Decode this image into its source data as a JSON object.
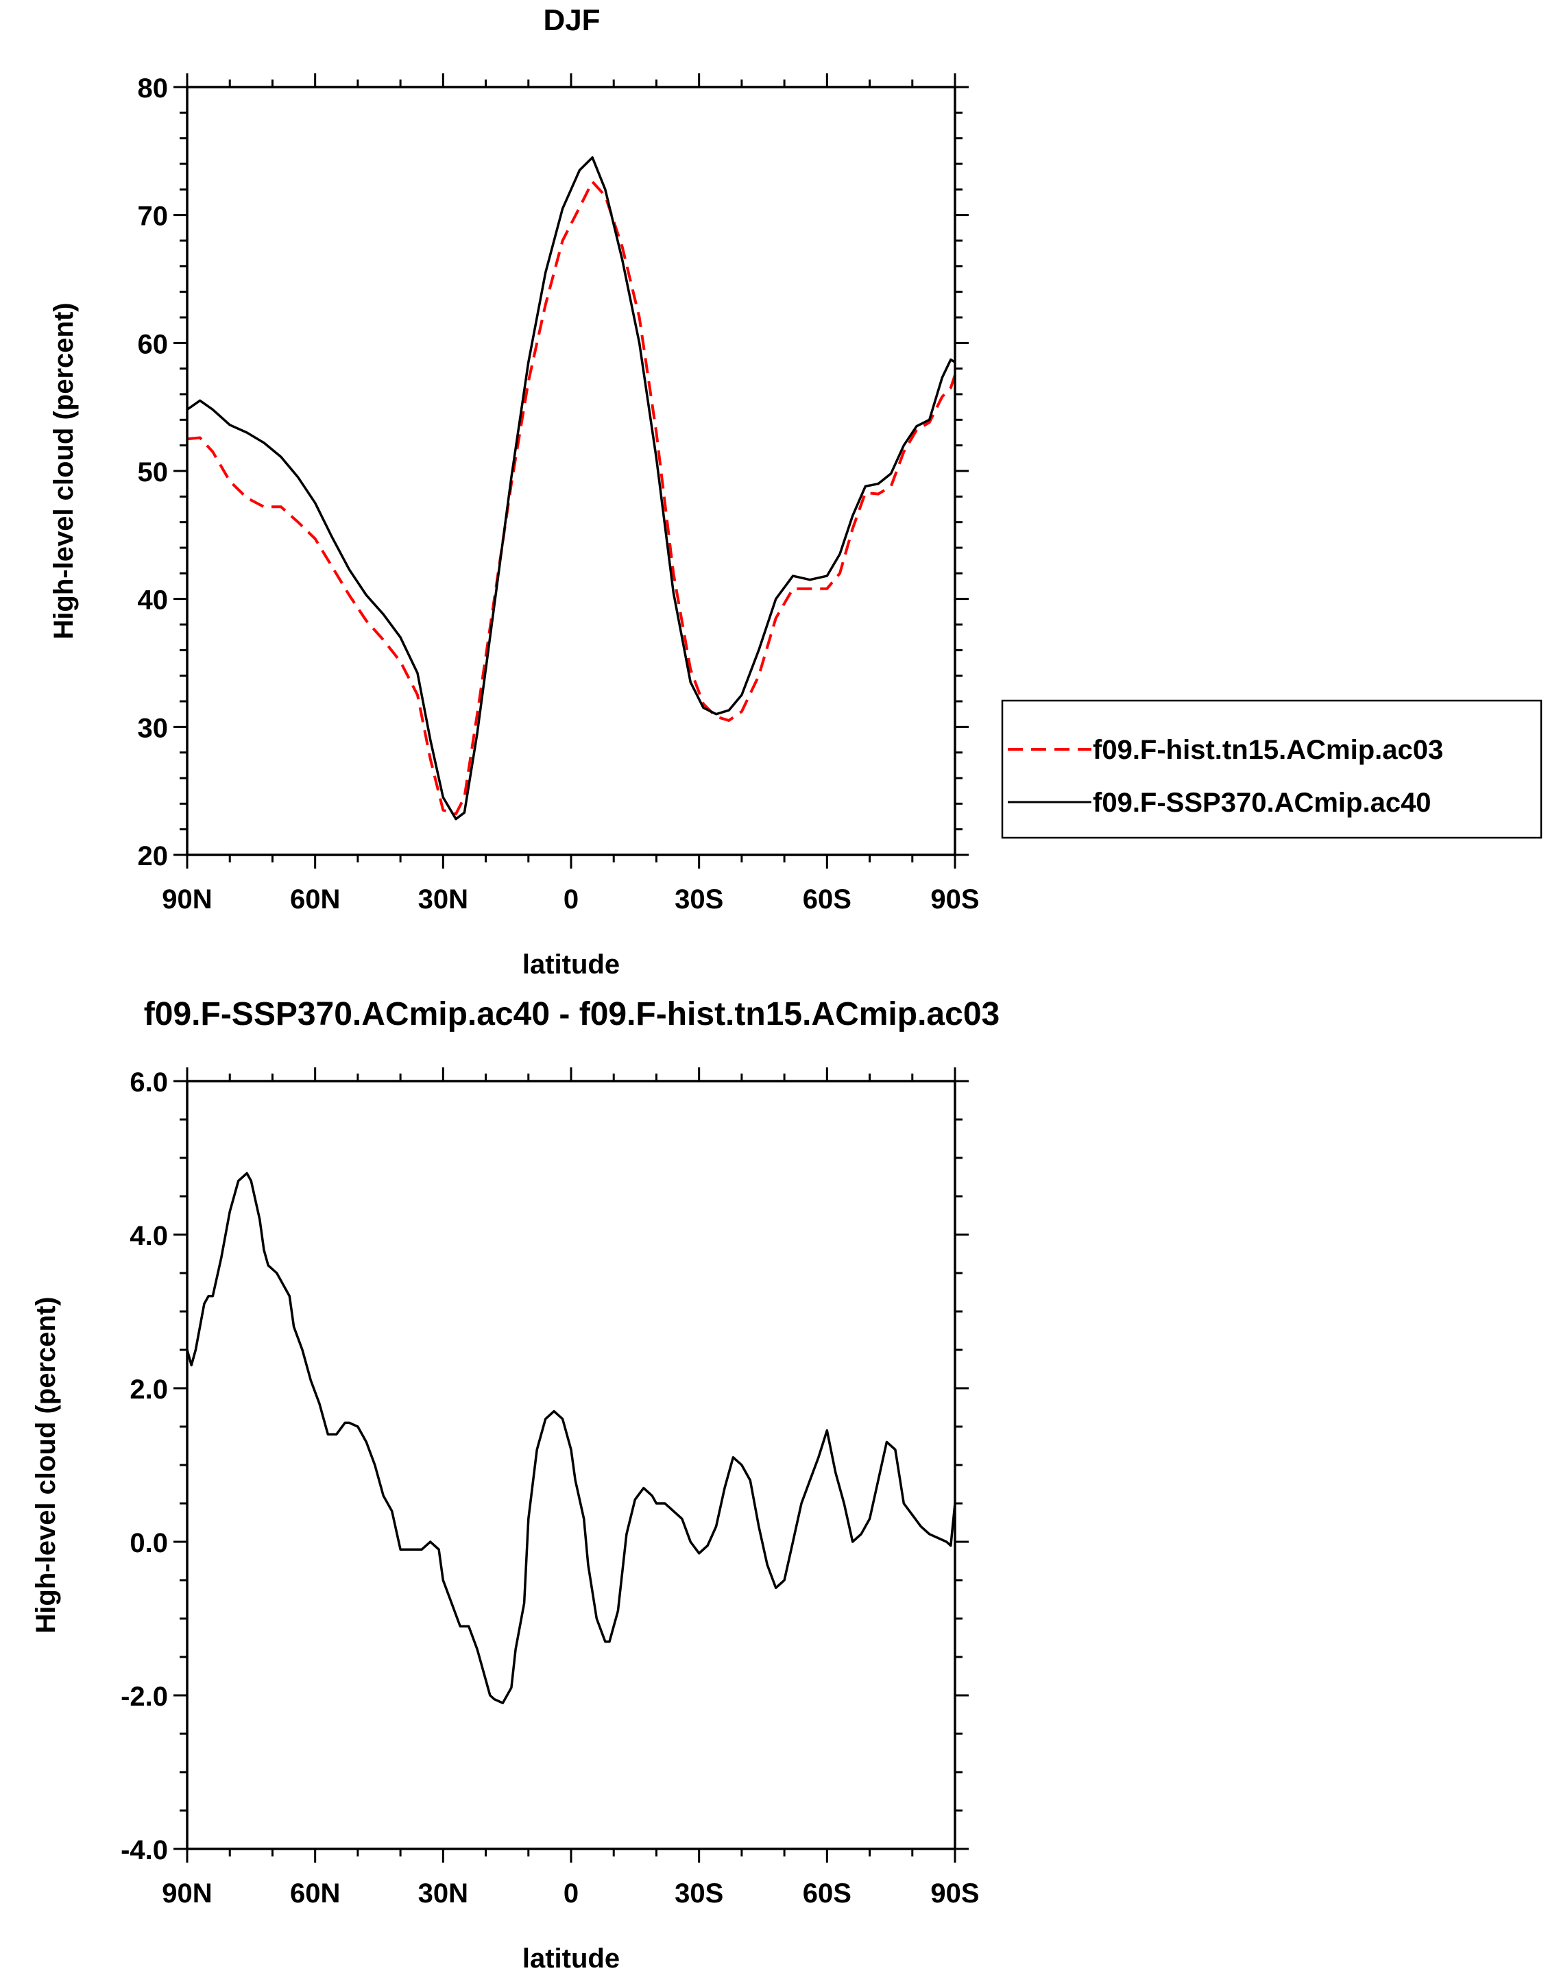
{
  "chart_data": [
    {
      "type": "line",
      "title": "DJF",
      "xlabel": "latitude",
      "ylabel": "High-level cloud (percent)",
      "xlim": [
        90,
        -90
      ],
      "ylim": [
        20,
        80
      ],
      "x_tick_values": [
        90,
        60,
        30,
        0,
        -30,
        -60,
        -90
      ],
      "x_tick_labels": [
        "90N",
        "60N",
        "30N",
        "0",
        "30S",
        "60S",
        "90S"
      ],
      "y_tick_values": [
        20,
        30,
        40,
        50,
        60,
        70,
        80
      ],
      "y_tick_labels": [
        "20",
        "30",
        "40",
        "50",
        "60",
        "70",
        "80"
      ],
      "legend_position": "right",
      "grid": false,
      "series": [
        {
          "name": "f09.F-hist.tn15.ACmip.ac03",
          "color": "#ff0000",
          "dashed": true,
          "x": [
            90,
            87,
            84,
            80,
            76,
            72,
            68,
            64,
            60,
            56,
            52,
            48,
            44,
            40,
            36,
            33,
            30,
            27,
            25,
            22,
            18,
            14,
            10,
            6,
            2,
            -2,
            -5,
            -8,
            -12,
            -16,
            -20,
            -24,
            -28,
            -31,
            -34,
            -37,
            -40,
            -44,
            -48,
            -52,
            -56,
            -60,
            -63,
            -66,
            -69,
            -72,
            -75,
            -78,
            -81,
            -84,
            -87,
            -89,
            -90
          ],
          "y": [
            52.5,
            52.6,
            51.5,
            49.2,
            47.9,
            47.2,
            47.2,
            46.0,
            44.7,
            42.5,
            40.3,
            38.3,
            36.8,
            35.1,
            32.5,
            27.5,
            23.5,
            23.2,
            24.5,
            31.0,
            40.0,
            49.0,
            57.0,
            63.0,
            68.0,
            70.6,
            72.6,
            71.5,
            67.5,
            62.0,
            53.0,
            42.0,
            34.5,
            31.8,
            30.8,
            30.5,
            31.2,
            34.0,
            38.5,
            40.8,
            40.8,
            40.8,
            42.0,
            45.5,
            48.3,
            48.2,
            48.8,
            51.5,
            53.2,
            53.8,
            55.8,
            56.5,
            57.5
          ]
        },
        {
          "name": "f09.F-SSP370.ACmip.ac40",
          "color": "#000000",
          "dashed": false,
          "x": [
            90,
            87,
            84,
            80,
            76,
            72,
            68,
            64,
            60,
            56,
            52,
            48,
            44,
            40,
            36,
            33,
            30,
            27,
            25,
            22,
            18,
            14,
            10,
            6,
            2,
            -2,
            -5,
            -8,
            -12,
            -16,
            -20,
            -24,
            -28,
            -31,
            -34,
            -37,
            -40,
            -44,
            -48,
            -52,
            -56,
            -60,
            -63,
            -66,
            -69,
            -72,
            -75,
            -78,
            -81,
            -84,
            -87,
            -89,
            -90
          ],
          "y": [
            54.8,
            55.5,
            54.8,
            53.6,
            53.0,
            52.2,
            51.1,
            49.5,
            47.5,
            44.8,
            42.3,
            40.3,
            38.8,
            37.0,
            34.2,
            29.0,
            24.5,
            22.8,
            23.3,
            29.5,
            39.5,
            49.5,
            58.5,
            65.5,
            70.5,
            73.5,
            74.5,
            72.0,
            66.5,
            60.0,
            51.0,
            40.5,
            33.5,
            31.5,
            31.0,
            31.3,
            32.5,
            36.0,
            40.0,
            41.8,
            41.5,
            41.8,
            43.5,
            46.5,
            48.8,
            49.0,
            49.8,
            52.0,
            53.5,
            54.0,
            57.3,
            58.7,
            58.5
          ]
        }
      ]
    },
    {
      "type": "line",
      "title": "f09.F-SSP370.ACmip.ac40 - f09.F-hist.tn15.ACmip.ac03",
      "xlabel": "latitude",
      "ylabel": "High-level cloud (percent)",
      "xlim": [
        90,
        -90
      ],
      "ylim": [
        -4.0,
        6.0
      ],
      "x_tick_values": [
        90,
        60,
        30,
        0,
        -30,
        -60,
        -90
      ],
      "x_tick_labels": [
        "90N",
        "60N",
        "30N",
        "0",
        "30S",
        "60S",
        "90S"
      ],
      "y_tick_values": [
        -4.0,
        -2.0,
        0.0,
        2.0,
        4.0,
        6.0
      ],
      "y_tick_labels": [
        "-4.0",
        "-2.0",
        "0.0",
        "2.0",
        "4.0",
        "6.0"
      ],
      "grid": false,
      "series": [
        {
          "color": "#000000",
          "x": [
            90,
            89,
            88,
            86,
            85,
            84,
            82,
            80,
            78,
            76,
            75,
            73,
            72,
            71,
            69,
            68,
            66,
            65,
            63,
            61,
            59,
            57,
            55,
            53,
            52,
            50,
            48,
            46,
            44,
            42,
            40,
            38,
            36,
            35,
            33,
            31,
            30,
            28,
            26,
            24,
            22,
            20,
            19,
            18,
            16,
            14,
            13,
            11,
            10,
            8,
            6,
            4,
            2,
            1,
            0,
            -1,
            -3,
            -4,
            -6,
            -8,
            -9,
            -11,
            -13,
            -15,
            -17,
            -19,
            -20,
            -22,
            -24,
            -26,
            -28,
            -30,
            -32,
            -34,
            -36,
            -38,
            -40,
            -42,
            -44,
            -46,
            -48,
            -50,
            -52,
            -54,
            -56,
            -58,
            -60,
            -62,
            -64,
            -66,
            -68,
            -70,
            -72,
            -74,
            -76,
            -78,
            -80,
            -82,
            -84,
            -86,
            -88,
            -89,
            -90
          ],
          "y": [
            2.5,
            2.3,
            2.5,
            3.1,
            3.2,
            3.2,
            3.7,
            4.3,
            4.7,
            4.8,
            4.7,
            4.2,
            3.8,
            3.6,
            3.5,
            3.4,
            3.2,
            2.8,
            2.5,
            2.1,
            1.8,
            1.4,
            1.4,
            1.55,
            1.55,
            1.5,
            1.3,
            1.0,
            0.6,
            0.4,
            -0.1,
            -0.1,
            -0.1,
            -0.1,
            0.0,
            -0.1,
            -0.5,
            -0.8,
            -1.1,
            -1.1,
            -1.4,
            -1.8,
            -2.0,
            -2.05,
            -2.1,
            -1.9,
            -1.4,
            -0.8,
            0.3,
            1.2,
            1.6,
            1.7,
            1.6,
            1.4,
            1.2,
            0.8,
            0.3,
            -0.3,
            -1.0,
            -1.3,
            -1.3,
            -0.9,
            0.1,
            0.55,
            0.7,
            0.6,
            0.5,
            0.5,
            0.4,
            0.3,
            0.0,
            -0.15,
            -0.05,
            0.2,
            0.7,
            1.1,
            1.0,
            0.8,
            0.2,
            -0.3,
            -0.6,
            -0.5,
            0.0,
            0.5,
            0.8,
            1.1,
            1.45,
            0.9,
            0.5,
            0.0,
            0.1,
            0.3,
            0.8,
            1.3,
            1.2,
            0.5,
            0.35,
            0.2,
            0.1,
            0.05,
            0.0,
            -0.05,
            0.5
          ]
        }
      ]
    }
  ]
}
